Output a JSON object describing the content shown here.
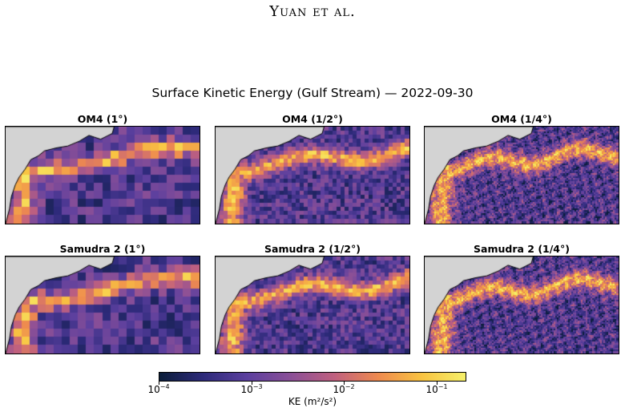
{
  "header": {
    "running_head": "Yuan et al."
  },
  "figure": {
    "title": "Surface Kinetic Energy (Gulf Stream) — 2022-09-30",
    "panels": [
      {
        "title": "OM4 (1°)",
        "model": "OM4",
        "resolution_deg": 1.0,
        "grid_cells": 24
      },
      {
        "title": "OM4 (1/2°)",
        "model": "OM4",
        "resolution_deg": 0.5,
        "grid_cells": 48
      },
      {
        "title": "OM4 (1/4°)",
        "model": "OM4",
        "resolution_deg": 0.25,
        "grid_cells": 120
      },
      {
        "title": "Samudra 2 (1°)",
        "model": "Samudra 2",
        "resolution_deg": 1.0,
        "grid_cells": 24
      },
      {
        "title": "Samudra 2 (1/2°)",
        "model": "Samudra 2",
        "resolution_deg": 0.5,
        "grid_cells": 48
      },
      {
        "title": "Samudra 2 (1/4°)",
        "model": "Samudra 2",
        "resolution_deg": 0.25,
        "grid_cells": 120
      }
    ],
    "land_color": "#d3d3d3",
    "coast_color": "#000000"
  },
  "chart_data": {
    "type": "heatmap",
    "title": "Surface Kinetic Energy (Gulf Stream) — 2022-09-30",
    "colorbar": {
      "label": "KE (m²/s²)",
      "scale": "log",
      "range": [
        0.0001,
        0.2
      ],
      "ticks": [
        {
          "value": 0.0001,
          "base": "10",
          "exp": "−4"
        },
        {
          "value": 0.001,
          "base": "10",
          "exp": "−3"
        },
        {
          "value": 0.01,
          "base": "10",
          "exp": "−2"
        },
        {
          "value": 0.1,
          "base": "10",
          "exp": "−1"
        }
      ],
      "colormap": [
        "#0b1d3a",
        "#2d2a7a",
        "#5b3f9e",
        "#8a4f97",
        "#c0607f",
        "#ee8a4f",
        "#f9c341",
        "#f5f06a"
      ]
    }
  }
}
